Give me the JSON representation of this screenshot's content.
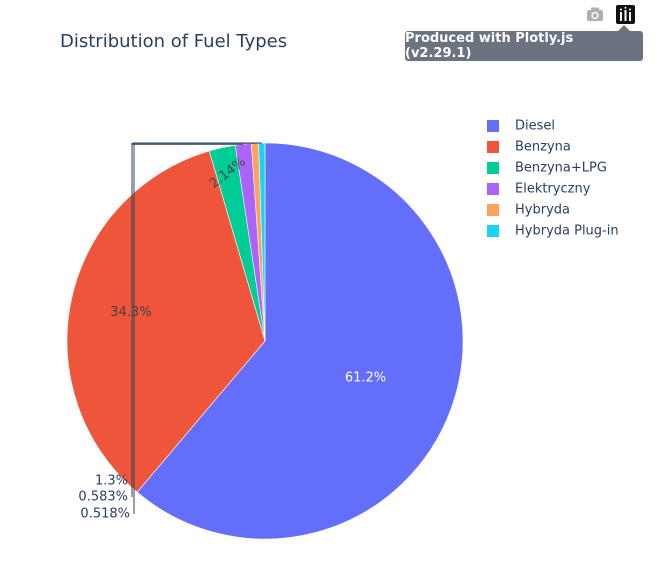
{
  "toolbar": {
    "camera_icon": "camera-icon",
    "plotly_logo_icon": "plotly-logo-icon",
    "tooltip": "Produced with Plotly.js (v2.29.1)"
  },
  "chart_data": {
    "type": "pie",
    "title": "Distribution of Fuel Types",
    "categories": [
      "Diesel",
      "Benzyna",
      "Benzyna+LPG",
      "Elektryczny",
      "Hybryda",
      "Hybryda Plug-in"
    ],
    "values": [
      61.2,
      34.3,
      2.14,
      1.3,
      0.583,
      0.518
    ],
    "labels": [
      "61.2%",
      "34.3%",
      "2.14%",
      "1.3%",
      "0.583%",
      "0.518%"
    ],
    "colors": [
      "#636efa",
      "#ef553b",
      "#00cc96",
      "#ab63fa",
      "#ffa15a",
      "#19d3f3"
    ],
    "legend": "top-right",
    "direction": "clockwise",
    "start": "top"
  }
}
